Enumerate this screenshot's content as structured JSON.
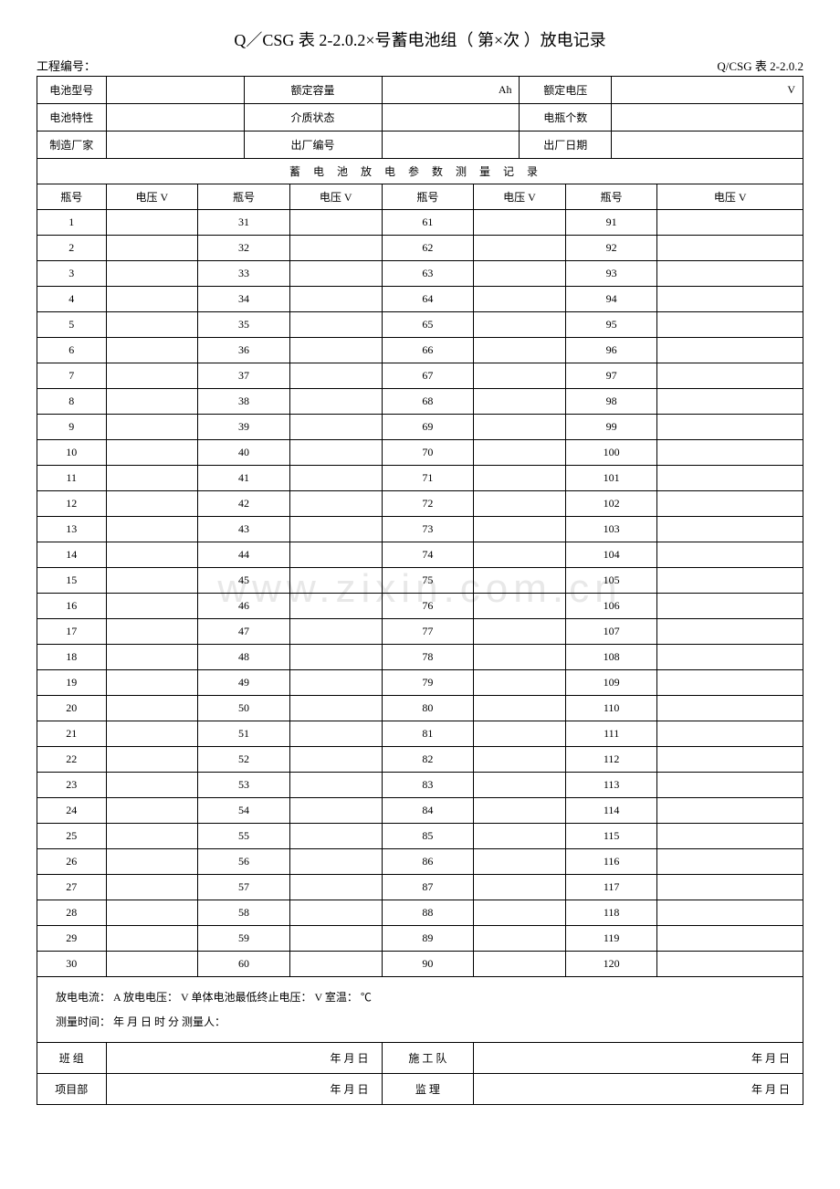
{
  "title": "Q／CSG 表 2-2.0.2×号蓄电池组（ 第×次 ）放电记录",
  "project_label": "工程编号：",
  "form_code": "Q/CSG 表 2-2.0.2",
  "info": {
    "r1c1_label": "电池型号",
    "r1c1_val": "",
    "r1c2_label": "额定容量",
    "r1c2_val": "",
    "r1c2_unit": "Ah",
    "r1c3_label": "额定电压",
    "r1c3_val": "",
    "r1c3_unit": "V",
    "r2c1_label": "电池特性",
    "r2c1_val": "",
    "r2c2_label": "介质状态",
    "r2c2_val": "",
    "r2c3_label": "电瓶个数",
    "r2c3_val": "",
    "r3c1_label": "制造厂家",
    "r3c1_val": "",
    "r3c2_label": "出厂编号",
    "r3c2_val": "",
    "r3c3_label": "出厂日期",
    "r3c3_val": ""
  },
  "section_header": "蓄电池放电参数测量记录",
  "col": {
    "bottle": "瓶号",
    "voltage": "电压 V"
  },
  "rows_start": [
    1,
    31,
    61,
    91
  ],
  "row_count": 30,
  "meta_line1": "放电电流：     A    放电电压：    V    单体电池最低终止电压：     V    室温：    ℃",
  "meta_line2": "测量时间：      年   月   日   时   分     测量人：",
  "sig": {
    "r1c1_label": "班   组",
    "r1c2_label": "施 工 队",
    "r2c1_label": "项目部",
    "r2c2_label": "监   理",
    "date": "年   月   日"
  },
  "watermark": "www.zixin.com.cn"
}
